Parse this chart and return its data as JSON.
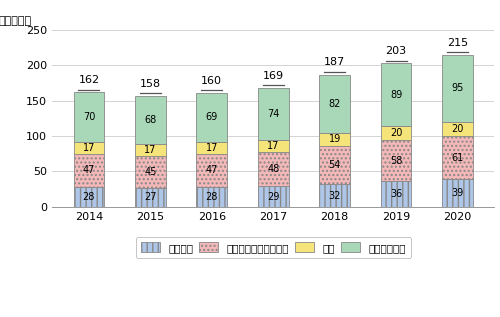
{
  "years": [
    "2014",
    "2015",
    "2016",
    "2017",
    "2018",
    "2019",
    "2020"
  ],
  "south_north_america": [
    28,
    27,
    28,
    29,
    32,
    36,
    39
  ],
  "europe_mideast_africa": [
    47,
    45,
    47,
    48,
    54,
    58,
    61
  ],
  "japan": [
    17,
    17,
    17,
    17,
    19,
    20,
    20
  ],
  "other_asia": [
    70,
    68,
    69,
    74,
    82,
    89,
    95
  ],
  "totals": [
    162,
    158,
    160,
    169,
    187,
    203,
    215
  ],
  "color_sna": "#aec6e8",
  "color_emea": "#f5b8b8",
  "color_japan": "#f5e47a",
  "color_asia": "#a8d8b8",
  "ylabel": "（億ドル）",
  "ylim": [
    0,
    250
  ],
  "yticks": [
    0,
    50,
    100,
    150,
    200,
    250
  ],
  "legend_labels": [
    "南北米州",
    "欧州・中東・アフリカ",
    "日本",
    "その他アジア"
  ],
  "bar_width": 0.5
}
